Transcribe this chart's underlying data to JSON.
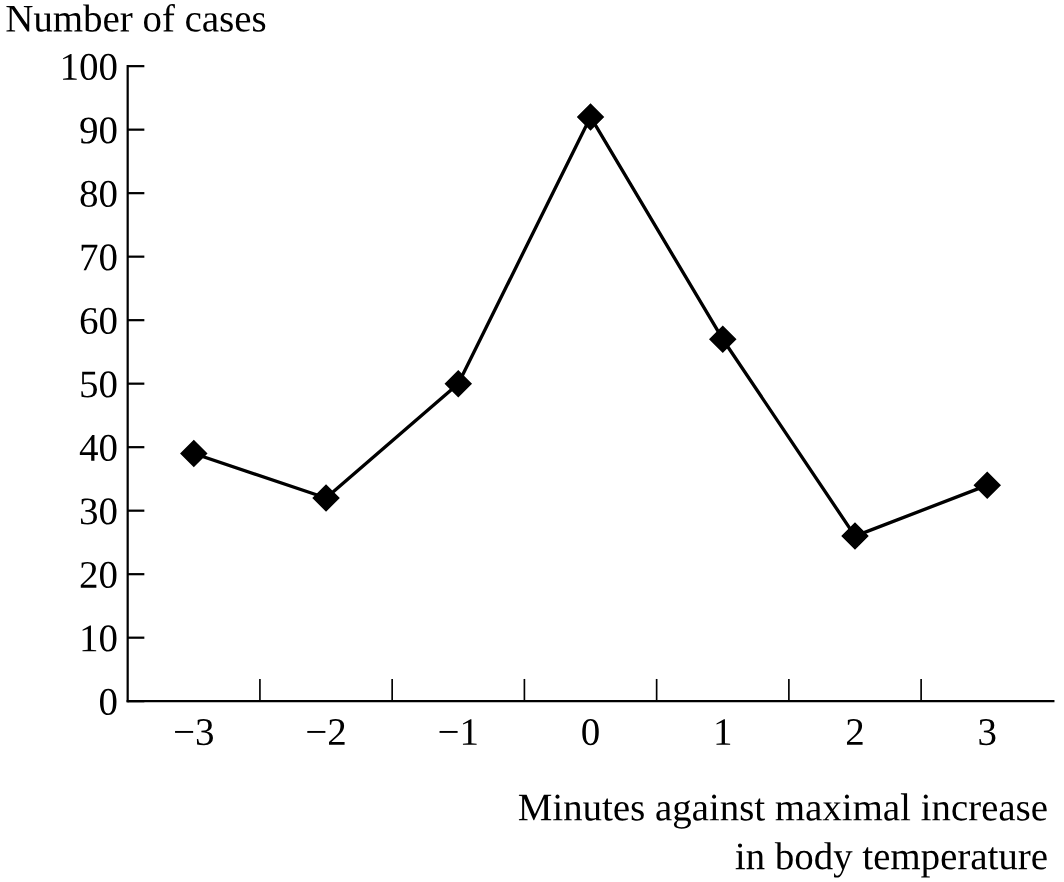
{
  "chart_data": {
    "type": "line",
    "ylabel": "Number of cases",
    "xlabel": "Minutes against maximal increase\nin body temperature",
    "x": [
      -3,
      -2,
      -1,
      0,
      1,
      2,
      3
    ],
    "series": [
      {
        "color": "#000000",
        "values": [
          39,
          32,
          50,
          92,
          57,
          26,
          34
        ]
      }
    ],
    "marker": "diamond",
    "line_style": "solid",
    "grid": false,
    "legend": false,
    "xlim": [
      -3.5,
      3.5
    ],
    "xticks": [
      {
        "value": -3,
        "label": "−3"
      },
      {
        "value": -2.5,
        "label": null
      },
      {
        "value": -2,
        "label": "−2"
      },
      {
        "value": -1.5,
        "label": null
      },
      {
        "value": -1,
        "label": "−1"
      },
      {
        "value": -0.5,
        "label": null
      },
      {
        "value": 0,
        "label": "0"
      },
      {
        "value": 0.5,
        "label": null
      },
      {
        "value": 1,
        "label": "1"
      },
      {
        "value": 1.5,
        "label": null
      },
      {
        "value": 2,
        "label": "2"
      },
      {
        "value": 2.5,
        "label": null
      },
      {
        "value": 3,
        "label": "3"
      }
    ],
    "ylim": [
      0,
      100
    ],
    "yticks": [
      0,
      10,
      20,
      30,
      40,
      50,
      60,
      70,
      80,
      90,
      100
    ]
  }
}
